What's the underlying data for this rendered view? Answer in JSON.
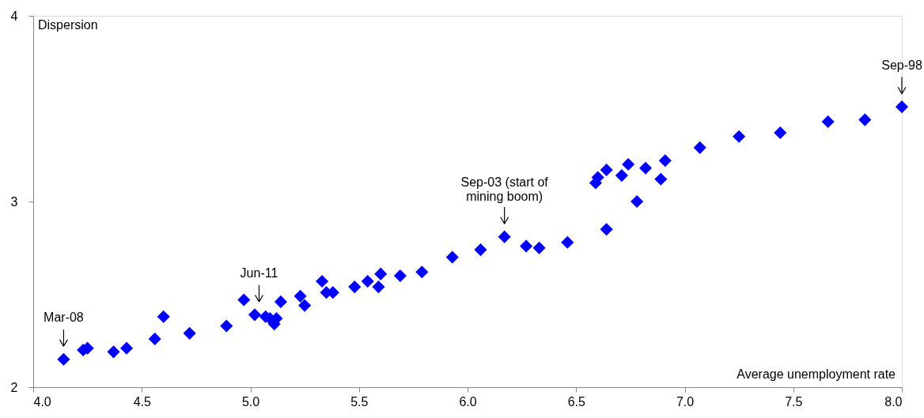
{
  "chart_data": {
    "type": "scatter",
    "xlabel": "Average unemployment rate",
    "ylabel": "Dispersion",
    "xlim": [
      4.0,
      8.0
    ],
    "xticks": [
      {
        "value": 4.0,
        "label": "4.0"
      },
      {
        "value": 4.5,
        "label": "4.5"
      },
      {
        "value": 5.0,
        "label": "5.0"
      },
      {
        "value": 5.5,
        "label": "5.5"
      },
      {
        "value": 6.0,
        "label": "6.0"
      },
      {
        "value": 6.5,
        "label": "6.5"
      },
      {
        "value": 7.0,
        "label": "7.0"
      },
      {
        "value": 7.5,
        "label": "7.5"
      },
      {
        "value": 8.0,
        "label": "8.0"
      }
    ],
    "ylim": [
      2,
      4
    ],
    "yticks": [
      2,
      3,
      4
    ],
    "grid": false,
    "marker": "diamond",
    "x": [
      4.14,
      4.23,
      4.25,
      4.37,
      4.43,
      4.56,
      4.6,
      4.72,
      4.89,
      4.97,
      5.02,
      5.07,
      5.09,
      5.11,
      5.12,
      5.14,
      5.23,
      5.25,
      5.33,
      5.35,
      5.38,
      5.48,
      5.54,
      5.59,
      5.6,
      5.69,
      5.79,
      5.93,
      6.06,
      6.17,
      6.27,
      6.33,
      6.46,
      6.59,
      6.6,
      6.64,
      6.64,
      6.71,
      6.74,
      6.78,
      6.82,
      6.89,
      6.91,
      7.07,
      7.25,
      7.44,
      7.66,
      7.83,
      8.0
    ],
    "series": [
      {
        "color": "#0000ff",
        "values": [
          2.15,
          2.2,
          2.21,
          2.19,
          2.21,
          2.26,
          2.38,
          2.29,
          2.33,
          2.47,
          2.39,
          2.38,
          2.37,
          2.34,
          2.37,
          2.46,
          2.49,
          2.44,
          2.57,
          2.51,
          2.51,
          2.54,
          2.57,
          2.54,
          2.61,
          2.6,
          2.62,
          2.7,
          2.74,
          2.81,
          2.76,
          2.75,
          2.78,
          3.1,
          3.13,
          3.17,
          2.85,
          3.14,
          3.2,
          3.0,
          3.18,
          3.12,
          3.22,
          3.29,
          3.35,
          3.37,
          3.43,
          3.44,
          3.51
        ]
      }
    ],
    "annotations": [
      {
        "text": "Mar-08",
        "x": 4.14,
        "y": 2.15
      },
      {
        "text": "Jun-11",
        "x": 5.04,
        "y": 2.39
      },
      {
        "text": "Sep-03 (start of\nmining boom)",
        "x": 6.17,
        "y": 2.81
      },
      {
        "text": "Sep-98",
        "x": 8.0,
        "y": 3.51
      }
    ]
  }
}
